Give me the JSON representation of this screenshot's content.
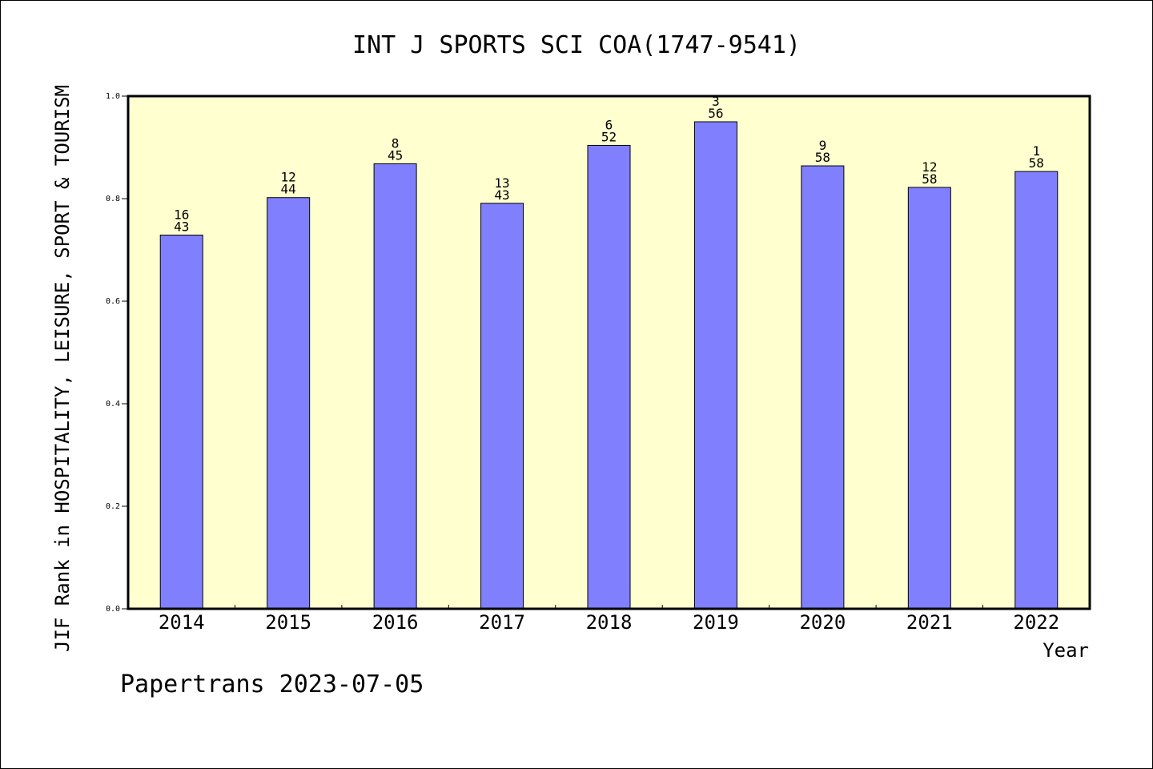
{
  "chart_data": {
    "type": "bar",
    "title": "INT J SPORTS SCI COA(1747-9541)",
    "ylabel": "JIF Rank in HOSPITALITY, LEISURE, SPORT & TOURISM",
    "xlabel": "Year",
    "ylim": [
      0,
      1.0
    ],
    "yticks": [
      "0.0",
      "0.2",
      "0.4",
      "0.6",
      "0.8",
      "1.0"
    ],
    "categories": [
      "2014",
      "2015",
      "2016",
      "2017",
      "2018",
      "2019",
      "2020",
      "2021",
      "2022"
    ],
    "values": [
      0.729,
      0.802,
      0.868,
      0.791,
      0.904,
      0.95,
      0.864,
      0.822,
      0.853
    ],
    "ranks": [
      "16",
      "12",
      "8",
      "13",
      "6",
      "3",
      "9",
      "12",
      "1"
    ],
    "totals": [
      "43",
      "44",
      "45",
      "43",
      "52",
      "56",
      "58",
      "58",
      "58"
    ],
    "grid": false,
    "colors": {
      "plot_bg": "#ffffd0",
      "bar": "#8080ff"
    }
  },
  "footer": "Papertrans 2023-07-05"
}
